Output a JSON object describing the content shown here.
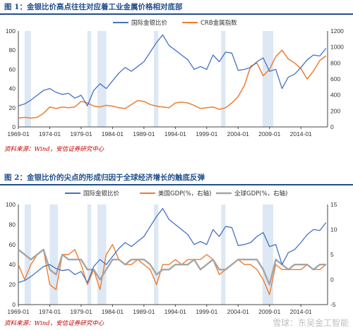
{
  "colors": {
    "gold_silver": "#4472c4",
    "crb": "#ed7d31",
    "us_gdp": "#ed7d31",
    "world_gdp": "#a5a5a5",
    "shade": "#dde8f4",
    "title": "#1f4e8c",
    "source": "#c00000"
  },
  "watermark": "雪球：东吴金工智能",
  "chart_data": [
    {
      "type": "line",
      "title": "图 1：金银比价高点往往对应着工业金属价格相对底部",
      "source": "资料来源：Wind，安信证券研究中心",
      "x_tick_labels": [
        "1969-01",
        "1974-01",
        "1979-01",
        "1984-01",
        "1989-01",
        "1994-01",
        "1999-01",
        "2004-01",
        "2009-01",
        "2014-01"
      ],
      "x_range": [
        1969.0,
        2018.25
      ],
      "y_left": {
        "range": [
          0,
          100
        ],
        "ticks": [
          "0",
          "20",
          "40",
          "60",
          "80",
          "100"
        ]
      },
      "y_right": {
        "range": [
          0,
          1200
        ],
        "ticks": [
          "0",
          "200",
          "400",
          "600",
          "800",
          "1000",
          "1200"
        ]
      },
      "shaded_periods": [
        [
          1970.0,
          1971.0
        ],
        [
          1980.0,
          1980.6
        ],
        [
          1981.6,
          1983.0
        ],
        [
          1990.6,
          1991.3
        ],
        [
          2001.3,
          2002.0
        ],
        [
          2007.9,
          2009.6
        ]
      ],
      "legend_position": "top-center",
      "series": [
        {
          "name": "国际金银比价",
          "axis": "left",
          "x": [
            1969.0,
            1970.0,
            1971.0,
            1972.0,
            1973.0,
            1974.0,
            1975.0,
            1976.0,
            1977.0,
            1978.0,
            1979.0,
            1980.0,
            1981.0,
            1982.0,
            1983.0,
            1984.0,
            1985.0,
            1986.0,
            1987.0,
            1988.0,
            1989.0,
            1990.0,
            1991.0,
            1992.0,
            1993.0,
            1994.0,
            1995.0,
            1996.0,
            1997.0,
            1998.0,
            1999.0,
            2000.0,
            2001.0,
            2002.0,
            2003.0,
            2004.0,
            2005.0,
            2006.0,
            2007.0,
            2008.0,
            2009.0,
            2010.0,
            2011.0,
            2012.0,
            2013.0,
            2014.0,
            2015.0,
            2016.0,
            2017.0,
            2018.0
          ],
          "values": [
            22,
            24,
            28,
            33,
            38,
            40,
            36,
            34,
            35,
            30,
            33,
            22,
            38,
            45,
            40,
            48,
            56,
            62,
            58,
            63,
            68,
            78,
            88,
            96,
            85,
            80,
            75,
            70,
            60,
            63,
            60,
            75,
            68,
            78,
            77,
            59,
            60,
            62,
            68,
            72,
            58,
            60,
            40,
            52,
            55,
            62,
            70,
            75,
            74,
            82
          ]
        },
        {
          "name": "CRB金属指数",
          "axis": "right",
          "x": [
            1969.0,
            1970.0,
            1971.0,
            1972.0,
            1973.0,
            1974.0,
            1975.0,
            1976.0,
            1977.0,
            1978.0,
            1979.0,
            1980.0,
            1981.0,
            1982.0,
            1983.0,
            1984.0,
            1985.0,
            1986.0,
            1987.0,
            1988.0,
            1989.0,
            1990.0,
            1991.0,
            1992.0,
            1993.0,
            1994.0,
            1995.0,
            1996.0,
            1997.0,
            1998.0,
            1999.0,
            2000.0,
            2001.0,
            2002.0,
            2003.0,
            2004.0,
            2005.0,
            2006.0,
            2007.0,
            2008.0,
            2009.0,
            2010.0,
            2011.0,
            2012.0,
            2013.0,
            2014.0,
            2015.0,
            2016.0,
            2017.0,
            2018.0
          ],
          "values": [
            110,
            120,
            110,
            120,
            170,
            250,
            230,
            250,
            240,
            250,
            320,
            300,
            260,
            250,
            270,
            260,
            240,
            230,
            280,
            330,
            320,
            280,
            260,
            250,
            240,
            300,
            310,
            300,
            270,
            230,
            240,
            250,
            220,
            240,
            300,
            380,
            520,
            760,
            800,
            640,
            720,
            880,
            960,
            850,
            800,
            730,
            600,
            700,
            830,
            890
          ]
        }
      ]
    },
    {
      "type": "line",
      "title": "图 2：金银比价的尖点的形成归因于全球经济增长的触底反弹",
      "source": "资料来源：Wind，安信证券研究中心",
      "x_tick_labels": [
        "1969-01",
        "1974-01",
        "1979-01",
        "1984-01",
        "1989-01",
        "1994-01",
        "1999-01",
        "2004-01",
        "2009-01",
        "2014-01"
      ],
      "x_range": [
        1969.0,
        2018.25
      ],
      "y_left": {
        "range": [
          0,
          100
        ],
        "ticks": [
          "0",
          "20",
          "40",
          "60",
          "80",
          "100"
        ]
      },
      "y_right": {
        "range": [
          -5,
          15
        ],
        "ticks": [
          "-5",
          "0",
          "5",
          "10",
          "15"
        ]
      },
      "shaded_periods": [
        [
          1970.0,
          1971.0
        ],
        [
          1974.0,
          1975.3
        ],
        [
          1980.0,
          1980.6
        ],
        [
          1981.6,
          1983.0
        ],
        [
          1990.6,
          1991.3
        ],
        [
          2001.3,
          2002.0
        ],
        [
          2007.9,
          2009.6
        ]
      ],
      "legend_position": "top",
      "series": [
        {
          "name": "国际金银比价",
          "axis": "left",
          "x": [
            1969.0,
            1970.0,
            1971.0,
            1972.0,
            1973.0,
            1974.0,
            1975.0,
            1976.0,
            1977.0,
            1978.0,
            1979.0,
            1980.0,
            1981.0,
            1982.0,
            1983.0,
            1984.0,
            1985.0,
            1986.0,
            1987.0,
            1988.0,
            1989.0,
            1990.0,
            1991.0,
            1992.0,
            1993.0,
            1994.0,
            1995.0,
            1996.0,
            1997.0,
            1998.0,
            1999.0,
            2000.0,
            2001.0,
            2002.0,
            2003.0,
            2004.0,
            2005.0,
            2006.0,
            2007.0,
            2008.0,
            2009.0,
            2010.0,
            2011.0,
            2012.0,
            2013.0,
            2014.0,
            2015.0,
            2016.0,
            2017.0,
            2018.0
          ],
          "values": [
            22,
            24,
            28,
            33,
            38,
            40,
            36,
            34,
            35,
            30,
            33,
            22,
            38,
            45,
            40,
            48,
            56,
            62,
            58,
            63,
            68,
            78,
            88,
            96,
            85,
            80,
            75,
            70,
            60,
            63,
            60,
            75,
            68,
            78,
            77,
            59,
            60,
            62,
            68,
            72,
            58,
            60,
            40,
            52,
            55,
            62,
            70,
            75,
            74,
            82
          ]
        },
        {
          "name": "美国GDP(%，右轴)",
          "axis": "right",
          "x": [
            1969.0,
            1970.0,
            1971.0,
            1972.0,
            1973.0,
            1974.0,
            1975.0,
            1976.0,
            1977.0,
            1978.0,
            1979.0,
            1980.0,
            1981.0,
            1982.0,
            1983.0,
            1984.0,
            1985.0,
            1986.0,
            1987.0,
            1988.0,
            1989.0,
            1990.0,
            1991.0,
            1992.0,
            1993.0,
            1994.0,
            1995.0,
            1996.0,
            1997.0,
            1998.0,
            1999.0,
            2000.0,
            2001.0,
            2002.0,
            2003.0,
            2004.0,
            2005.0,
            2006.0,
            2007.0,
            2008.0,
            2009.0,
            2010.0,
            2011.0,
            2012.0,
            2013.0,
            2014.0,
            2015.0,
            2016.0,
            2017.0,
            2018.0
          ],
          "values": [
            3,
            0,
            3,
            5,
            6,
            -1,
            -2,
            5,
            5,
            6,
            3,
            -1,
            2,
            -2,
            5,
            7,
            4,
            3,
            3,
            4,
            3,
            2,
            -1,
            3,
            3,
            4,
            3,
            4,
            4,
            4,
            5,
            4,
            1,
            2,
            3,
            4,
            3,
            3,
            2,
            0,
            -3,
            3,
            2,
            2,
            2,
            2,
            3,
            2,
            2,
            3
          ]
        },
        {
          "name": "全球GDP(%，右轴)",
          "axis": "right",
          "x": [
            1969.0,
            1970.0,
            1971.0,
            1972.0,
            1973.0,
            1974.0,
            1975.0,
            1976.0,
            1977.0,
            1978.0,
            1979.0,
            1980.0,
            1981.0,
            1982.0,
            1983.0,
            1984.0,
            1985.0,
            1986.0,
            1987.0,
            1988.0,
            1989.0,
            1990.0,
            1991.0,
            1992.0,
            1993.0,
            1994.0,
            1995.0,
            1996.0,
            1997.0,
            1998.0,
            1999.0,
            2000.0,
            2001.0,
            2002.0,
            2003.0,
            2004.0,
            2005.0,
            2006.0,
            2007.0,
            2008.0,
            2009.0,
            2010.0,
            2011.0,
            2012.0,
            2013.0,
            2014.0,
            2015.0,
            2016.0,
            2017.0,
            2018.0
          ],
          "values": [
            6,
            5,
            4,
            5,
            6,
            2,
            1,
            5,
            4,
            4,
            4,
            2,
            2,
            0,
            2,
            4,
            4,
            3,
            4,
            4,
            4,
            3,
            1,
            2,
            2,
            3,
            3,
            3,
            4,
            2,
            3,
            4,
            2,
            2,
            3,
            4,
            4,
            4,
            4,
            2,
            -1,
            4,
            3,
            2,
            3,
            3,
            3,
            2,
            3,
            3
          ]
        }
      ]
    }
  ]
}
